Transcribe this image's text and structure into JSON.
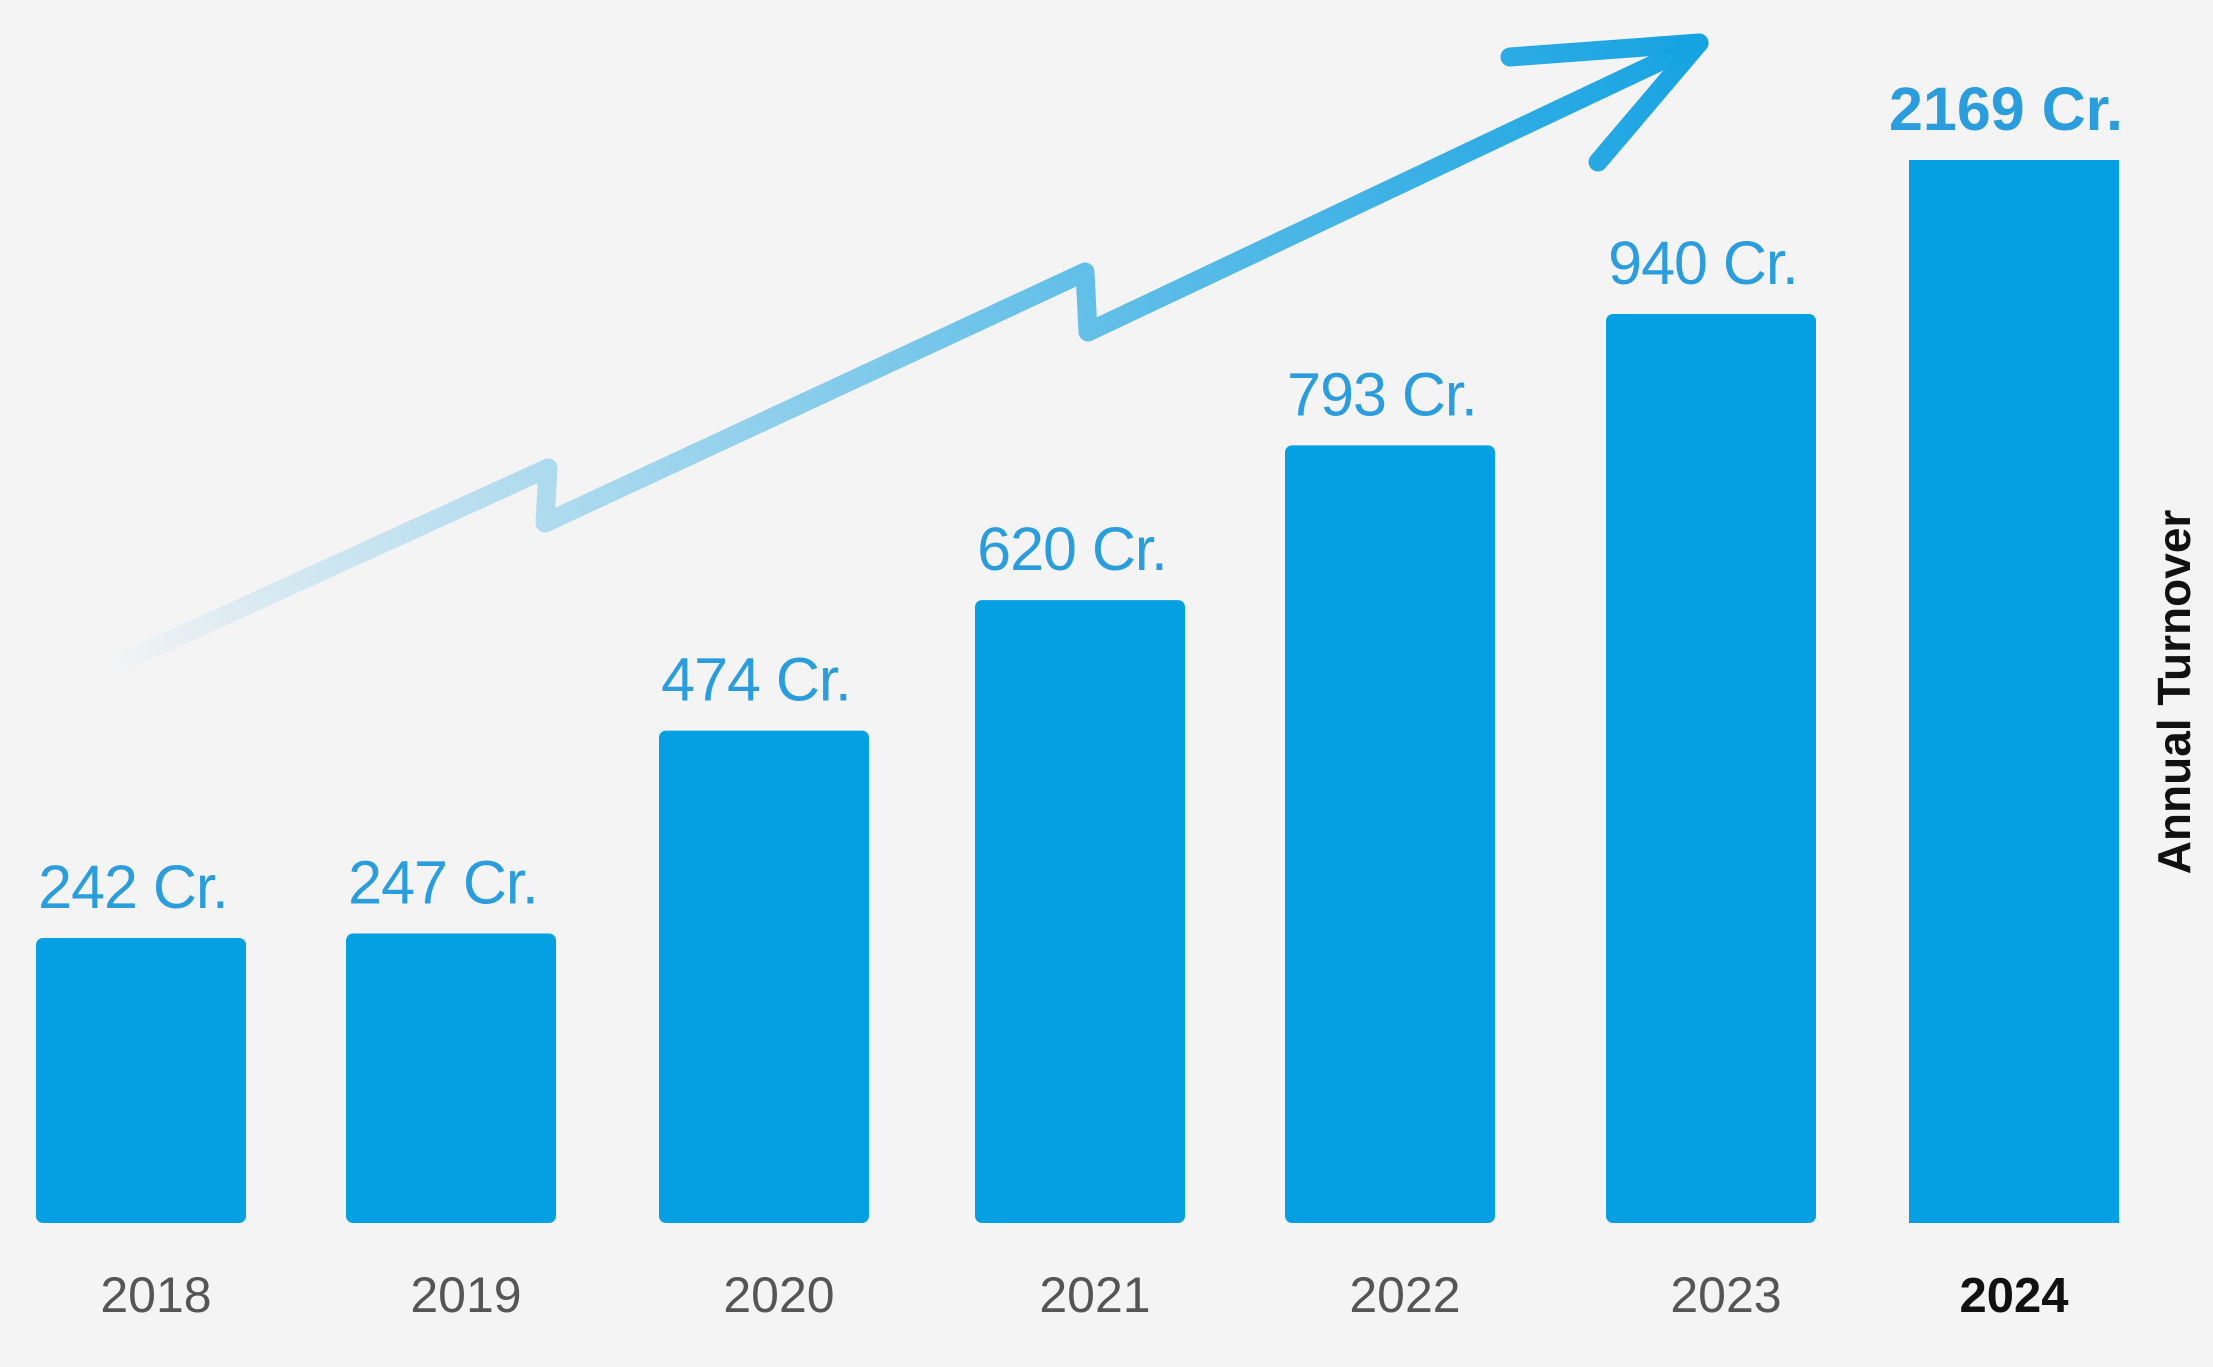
{
  "chart_data": {
    "type": "bar",
    "categories": [
      "2018",
      "2019",
      "2020",
      "2021",
      "2022",
      "2023",
      "2024"
    ],
    "values": [
      242,
      247,
      474,
      620,
      793,
      940,
      2169
    ],
    "value_labels": [
      "242 Cr.",
      "247 Cr.",
      "474 Cr.",
      "620 Cr.",
      "793 Cr.",
      "940 Cr.",
      "2169 Cr."
    ],
    "highlight_index": 6,
    "ylabel": "Annual Turnover",
    "legend": "none",
    "grid": false,
    "decoration": "upward trend arrow",
    "colors": {
      "bar": "#05a0e2",
      "value_label": "#2b9ddc",
      "year_label": "#555555",
      "year_label_highlight": "#111111",
      "arrow": "#16a3e2",
      "background": "#f4f4f4"
    }
  }
}
